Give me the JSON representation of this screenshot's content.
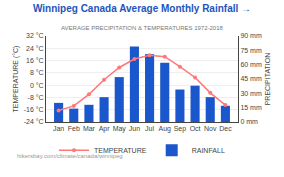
{
  "chart_data": {
    "type": "bar",
    "title": "Winnipeg Canada Average Monthly Rainfall →",
    "subtitle": "AVERAGE PRECIPITATION & TEMPERATURES 1972-2018",
    "ylabel": "TEMPERATURE (°C)",
    "y2label": "PRECIPITATION",
    "annotations": [
      "hikersbay.com/climate/canada/winnipeg"
    ],
    "categories": [
      "Jan",
      "Feb",
      "Mar",
      "Apr",
      "May",
      "Jun",
      "Jul",
      "Aug",
      "Sep",
      "Oct",
      "Nov",
      "Dec"
    ],
    "series": [
      {
        "name": "TEMPERATURE",
        "type": "line",
        "color": "#ff7777",
        "marker": "circle",
        "values": [
          -16.5,
          -13.5,
          -6.0,
          3.5,
          11.5,
          17.0,
          19.5,
          18.5,
          12.0,
          5.0,
          -5.0,
          -13.0
        ]
      },
      {
        "name": "RAINFALL",
        "type": "bar",
        "color": "#1a56cc",
        "axis": "y2",
        "values": [
          20,
          14,
          18,
          26,
          47,
          79,
          71,
          62,
          34,
          38,
          26,
          17
        ]
      }
    ],
    "ylim": [
      -24,
      32
    ],
    "yticks": [
      {
        "value": -24,
        "label": "-24 °C"
      },
      {
        "value": -16,
        "label": "-16 °C"
      },
      {
        "value": -8,
        "label": "-8 °C"
      },
      {
        "value": 0,
        "label": "0 °C"
      },
      {
        "value": 8,
        "label": "8 °C"
      },
      {
        "value": 16,
        "label": "16 °C"
      },
      {
        "value": 24,
        "label": "24 °C"
      },
      {
        "value": 32,
        "label": "32 °C"
      }
    ],
    "y2lim": [
      0,
      90
    ],
    "y2ticks": [
      {
        "value": 0,
        "label": "0 mm"
      },
      {
        "value": 15,
        "label": "15 mm"
      },
      {
        "value": 30,
        "label": "30 mm"
      },
      {
        "value": 45,
        "label": "45 mm"
      },
      {
        "value": 60,
        "label": "60 mm"
      },
      {
        "value": 75,
        "label": "75 mm"
      },
      {
        "value": 90,
        "label": "90 mm"
      }
    ],
    "grid": true,
    "legend": "bottom"
  }
}
